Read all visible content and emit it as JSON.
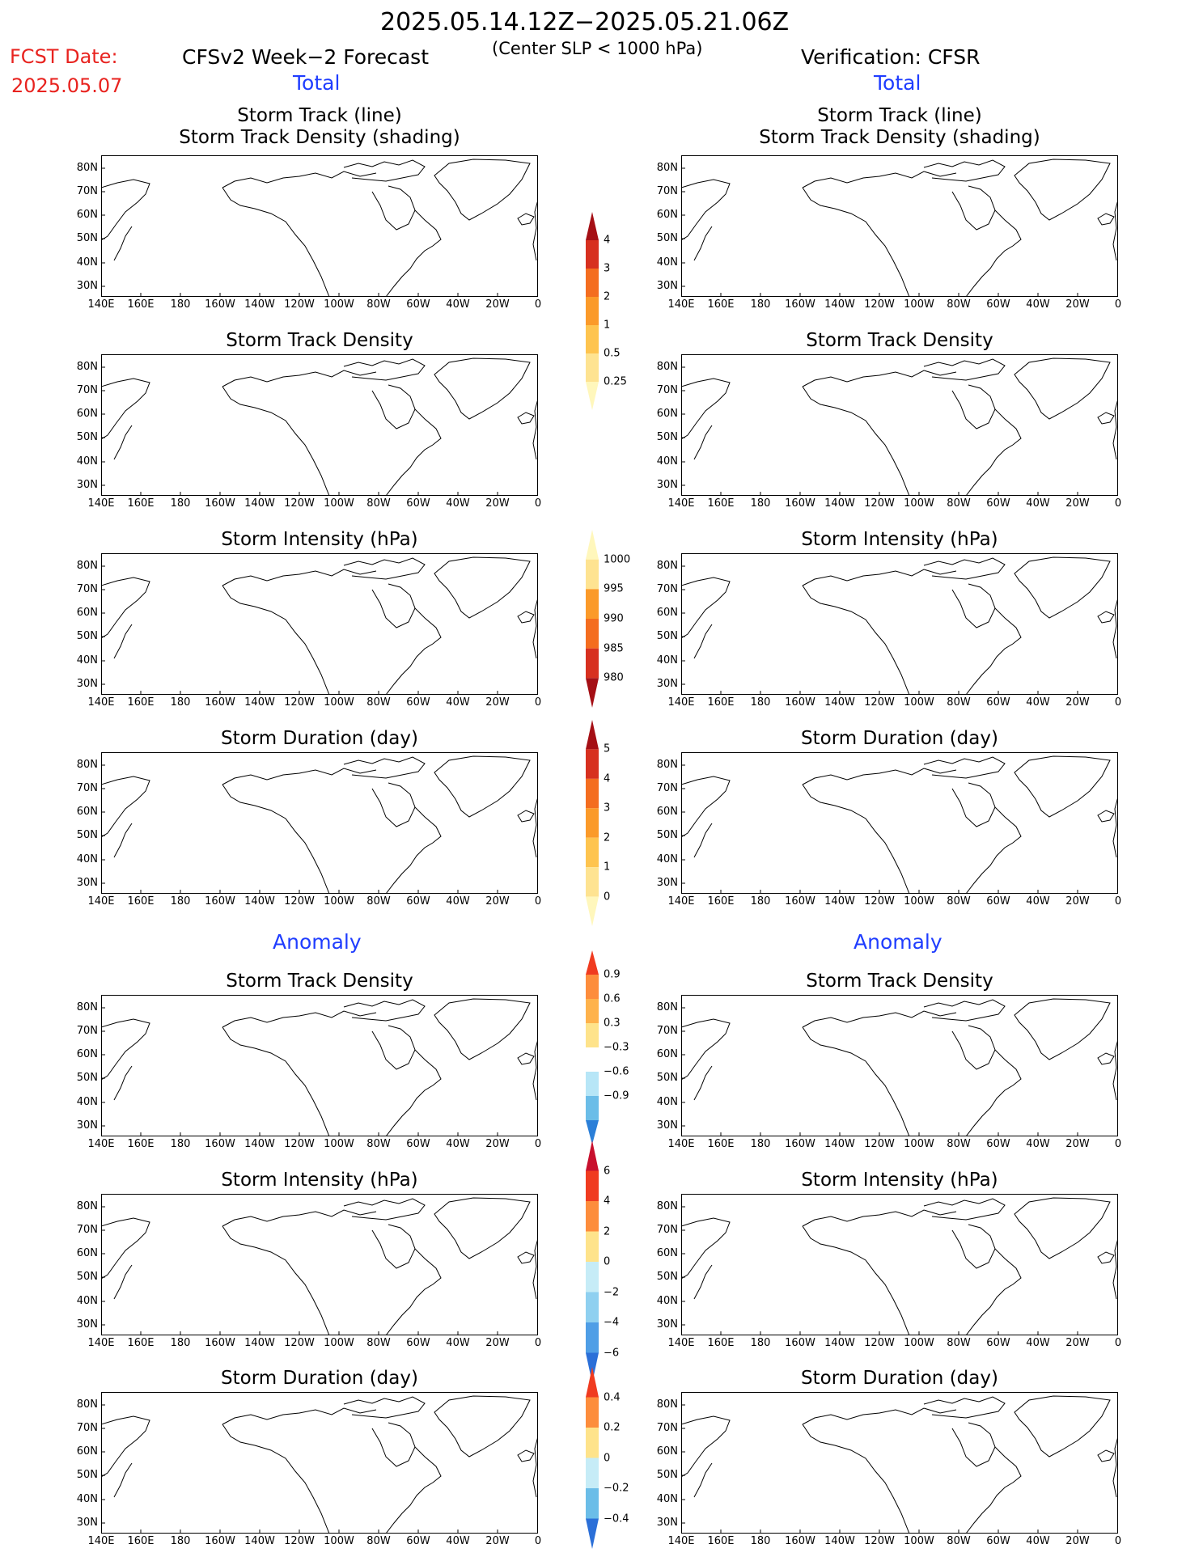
{
  "header": {
    "date_range": "2025.05.14.12Z−2025.05.21.06Z",
    "fcst_label": "FCST Date:",
    "fcst_date": "2025.05.07",
    "model_title": "CFSv2 Week−2 Forecast",
    "slp_note": "(Center SLP < 1000 hPa)",
    "verification": "Verification: CFSR",
    "total_left": "Total",
    "total_right": "Total",
    "anomaly_left": "Anomaly",
    "anomaly_right": "Anomaly"
  },
  "axes": {
    "lat_labels": [
      "80N",
      "70N",
      "60N",
      "50N",
      "40N",
      "30N"
    ],
    "lon_labels": [
      "140E",
      "160E",
      "180",
      "160W",
      "140W",
      "120W",
      "100W",
      "80W",
      "60W",
      "40W",
      "20W",
      "0"
    ]
  },
  "panels": [
    {
      "title_line1": "Storm Track (line)",
      "title_line2": "Storm Track Density (shading)"
    },
    {
      "title_line1": "Storm Track (line)",
      "title_line2": "Storm Track Density (shading)"
    },
    {
      "title_line1": "Storm Track Density",
      "title_line2": ""
    },
    {
      "title_line1": "Storm Track Density",
      "title_line2": ""
    },
    {
      "title_line1": "Storm Intensity (hPa)",
      "title_line2": ""
    },
    {
      "title_line1": "Storm Intensity (hPa)",
      "title_line2": ""
    },
    {
      "title_line1": "Storm Duration (day)",
      "title_line2": ""
    },
    {
      "title_line1": "Storm Duration (day)",
      "title_line2": ""
    },
    {
      "title_line1": "Storm Track Density",
      "title_line2": ""
    },
    {
      "title_line1": "Storm Track Density",
      "title_line2": ""
    },
    {
      "title_line1": "Storm Intensity (hPa)",
      "title_line2": ""
    },
    {
      "title_line1": "Storm Intensity (hPa)",
      "title_line2": ""
    },
    {
      "title_line1": "Storm Duration (day)",
      "title_line2": ""
    },
    {
      "title_line1": "Storm Duration (day)",
      "title_line2": ""
    }
  ],
  "colorbars": [
    {
      "labels": [
        "4",
        "3",
        "2",
        "1",
        "0.5",
        "0.25"
      ],
      "colors": [
        "#a50f15",
        "#d7301f",
        "#f46d1f",
        "#fb9a29",
        "#fec44f",
        "#fee391",
        "#fff7bc"
      ]
    },
    {
      "labels": [
        "1000",
        "995",
        "990",
        "985",
        "980"
      ],
      "colors": [
        "#fff7bc",
        "#fee391",
        "#fb9a29",
        "#f46d1f",
        "#d7301f",
        "#a50f15"
      ]
    },
    {
      "labels": [
        "5",
        "4",
        "3",
        "2",
        "1",
        "0"
      ],
      "colors": [
        "#a50f15",
        "#d7301f",
        "#f46d1f",
        "#fb9a29",
        "#fec44f",
        "#fee391",
        "#fff7bc"
      ]
    },
    {
      "labels": [
        "0.9",
        "0.6",
        "0.3",
        "−0.3",
        "−0.6",
        "−0.9"
      ],
      "colors": [
        "#f03b20",
        "#fd8d3c",
        "#feb24c",
        "#fee38b",
        "#ffffff",
        "#b7e6f7",
        "#6bbde8",
        "#2b7fd8"
      ]
    },
    {
      "labels": [
        "6",
        "4",
        "2",
        "0",
        "−2",
        "−4",
        "−6"
      ],
      "colors": [
        "#c8102e",
        "#f03b20",
        "#fd8d3c",
        "#fee38b",
        "#c6ecf7",
        "#8fd0f0",
        "#4f9ee6",
        "#2b6fd8"
      ]
    },
    {
      "labels": [
        "0.4",
        "0.2",
        "0",
        "−0.2",
        "−0.4"
      ],
      "colors": [
        "#f03b20",
        "#fd8d3c",
        "#fee38b",
        "#c6ecf7",
        "#6bbde8",
        "#2b6fd8"
      ]
    }
  ]
}
